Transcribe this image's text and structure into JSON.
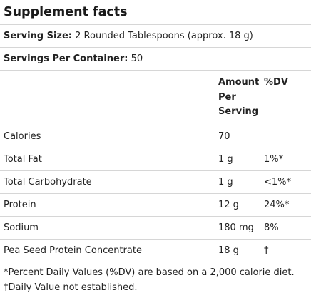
{
  "title": "Supplement facts",
  "serving_size": {
    "label": "Serving Size:",
    "value": "2 Rounded Tablespoons (approx. 18 g)"
  },
  "servings_per_container": {
    "label": "Servings Per Container:",
    "value": "50"
  },
  "columns": {
    "amount_line1": "Amount",
    "amount_line2": "Per",
    "amount_line3": "Serving",
    "dv": "%DV"
  },
  "rows": [
    {
      "name": "Calories",
      "amount": "70",
      "dv": ""
    },
    {
      "name": "Total Fat",
      "amount": "1 g",
      "dv": "1%*"
    },
    {
      "name": "Total Carbohydrate",
      "amount": "1 g",
      "dv": "<1%*"
    },
    {
      "name": "Protein",
      "amount": "12 g",
      "dv": "24%*"
    },
    {
      "name": "Sodium",
      "amount": "180 mg",
      "dv": "8%"
    },
    {
      "name": "Pea Seed Protein Concentrate",
      "amount": "18 g",
      "dv": "†"
    }
  ],
  "footnotes": [
    "*Percent Daily Values (%DV) are based on a 2,000 calorie diet.",
    "†Daily Value not established."
  ]
}
